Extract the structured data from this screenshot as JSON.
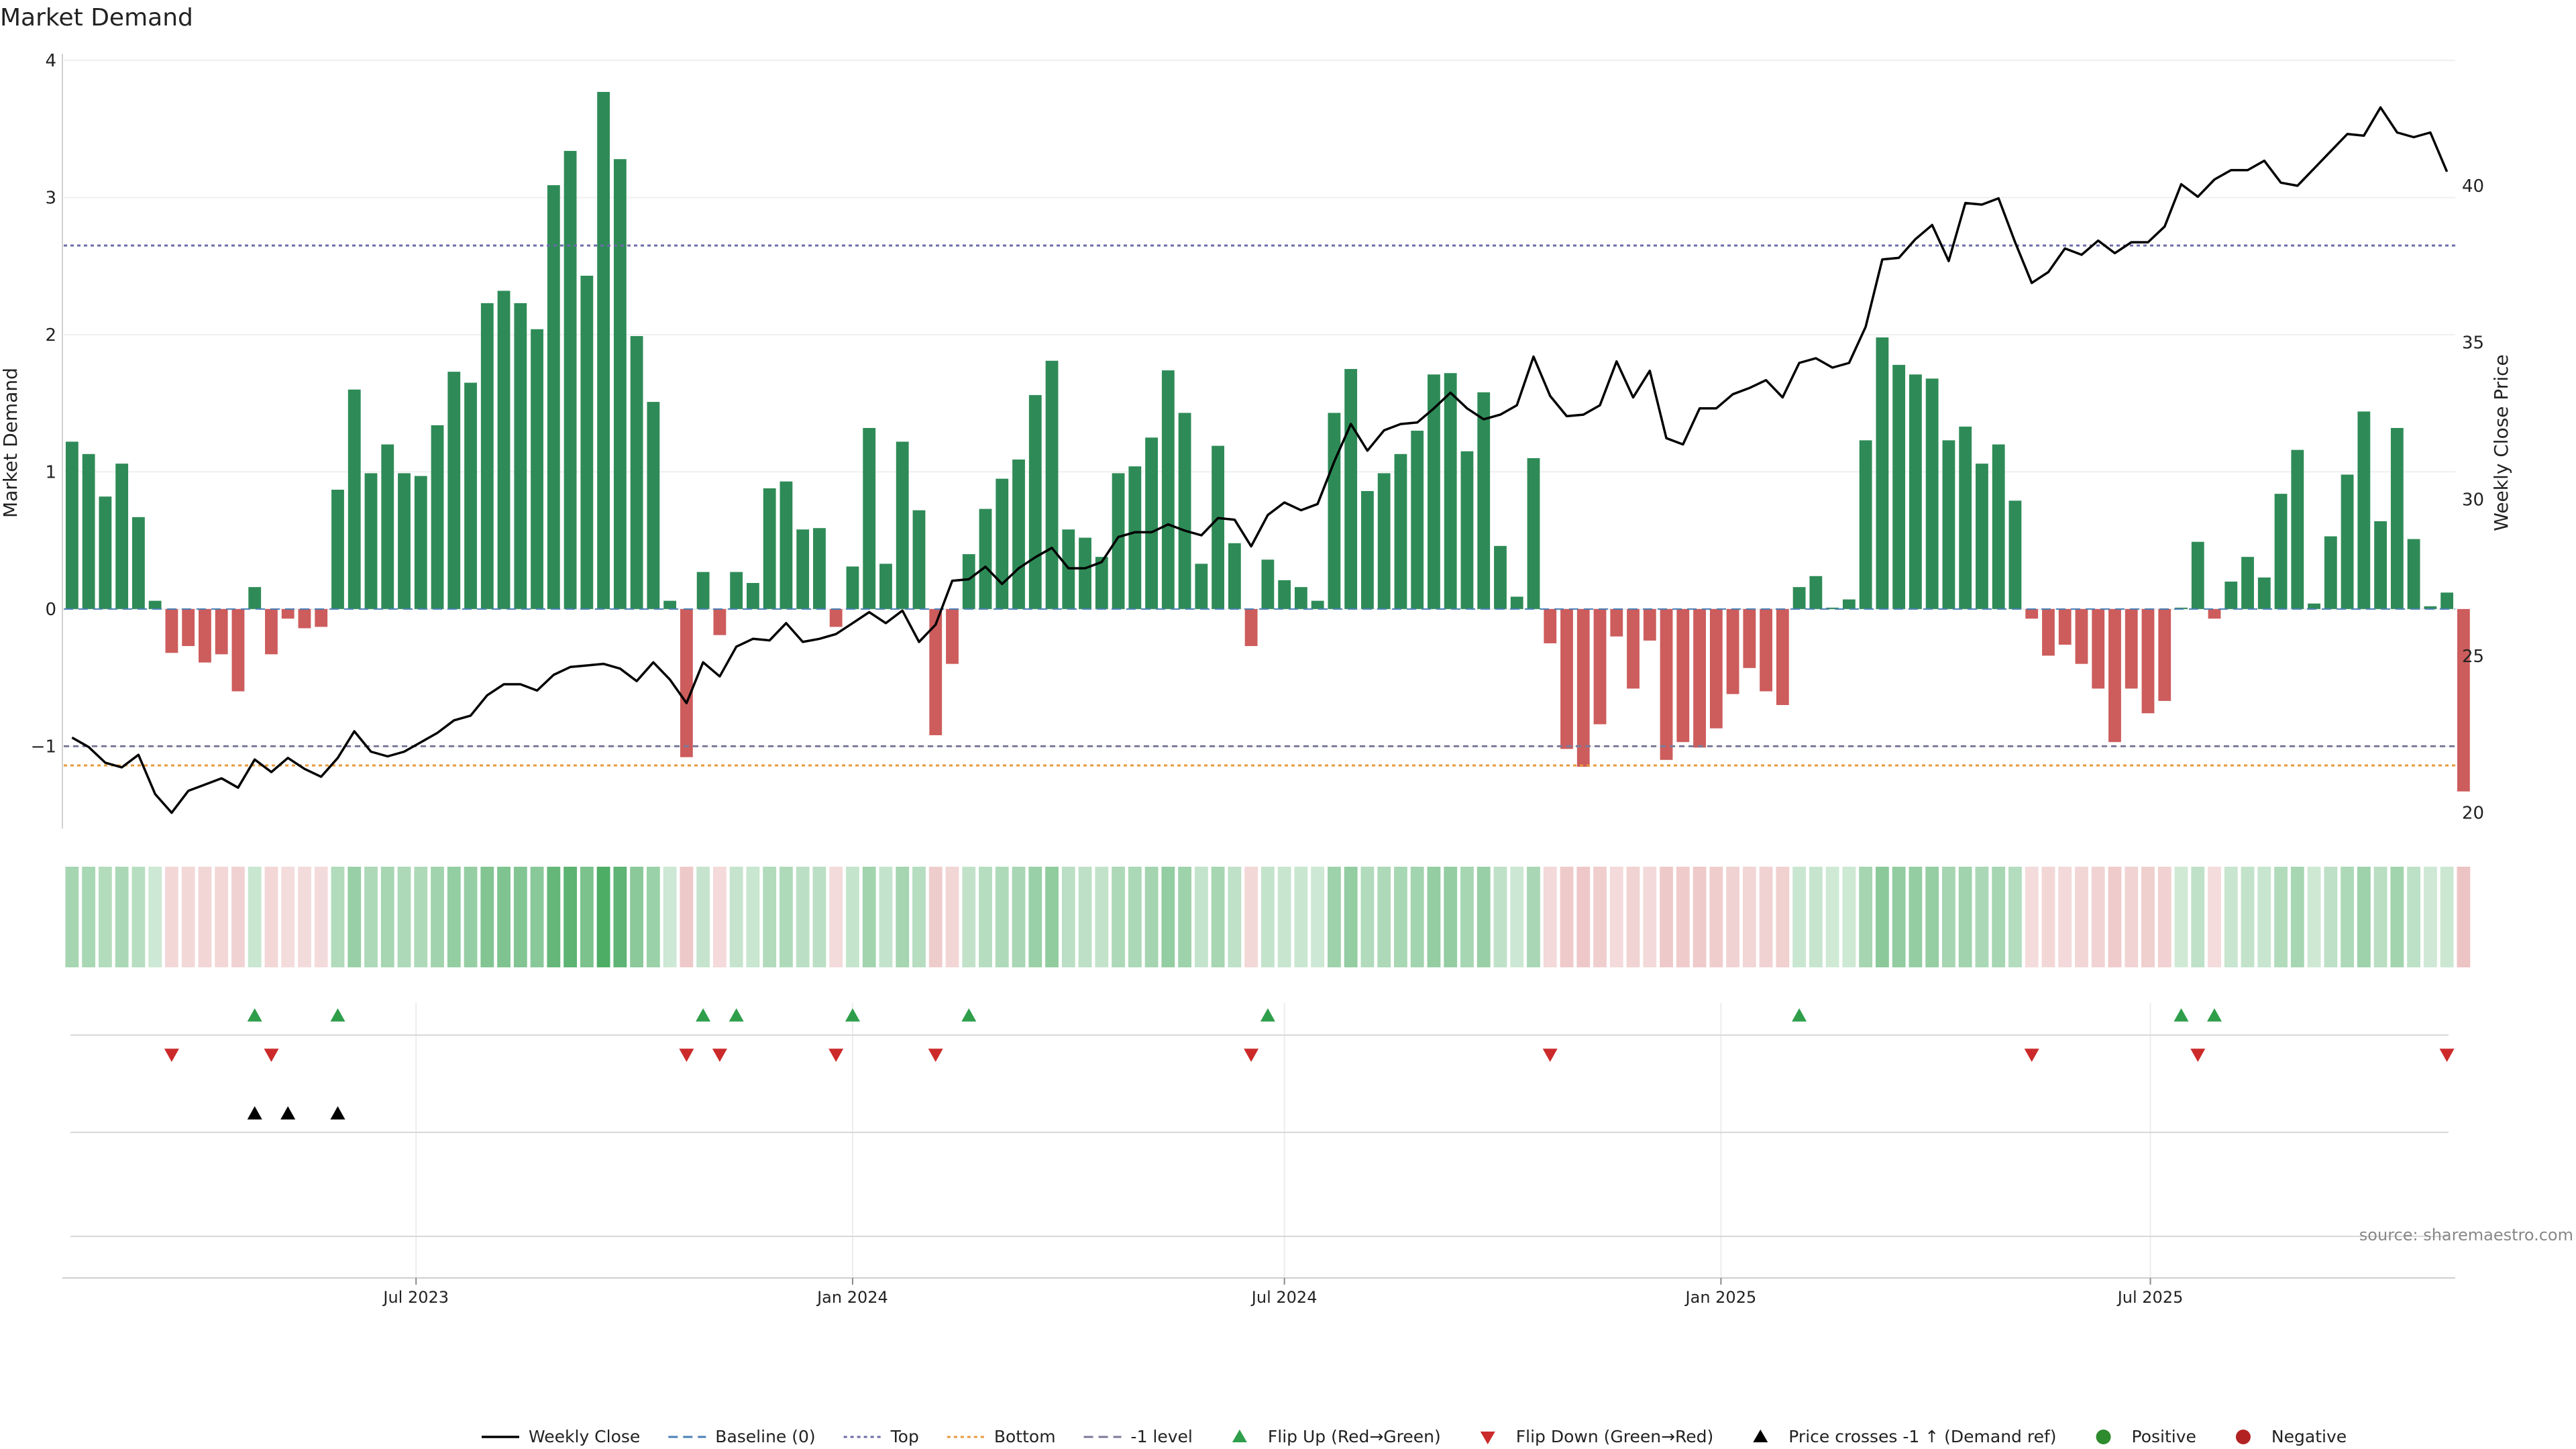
{
  "chart_data": {
    "type": "bar",
    "title": "Market Demand",
    "ylabel": "Market Demand",
    "y2label": "Weekly Close Price",
    "ylim": [
      -1.6,
      4.0
    ],
    "y2lim": [
      19.5,
      44.0
    ],
    "yticks": [
      -1,
      0,
      1,
      2,
      3,
      4
    ],
    "y2ticks": [
      20,
      25,
      30,
      35,
      40
    ],
    "x_start": "2023-02-06",
    "x_end": "2025-11-17",
    "weeks": 144,
    "xtick_labels": [
      {
        "label": "Jul 2023",
        "date": "2023-07-01"
      },
      {
        "label": "Jan 2024",
        "date": "2024-01-01"
      },
      {
        "label": "Jul 2024",
        "date": "2024-07-01"
      },
      {
        "label": "Jan 2025",
        "date": "2025-01-01"
      },
      {
        "label": "Jul 2025",
        "date": "2025-07-01"
      }
    ],
    "reference_lines": {
      "top": 2.65,
      "bottom": -1.14,
      "minus_one": -1.0,
      "baseline": 0
    },
    "demand": [
      1.22,
      1.13,
      0.82,
      1.06,
      0.67,
      0.06,
      -0.32,
      -0.27,
      -0.39,
      -0.33,
      -0.6,
      0.16,
      -0.33,
      -0.07,
      -0.14,
      -0.13,
      0.87,
      1.6,
      0.99,
      1.2,
      0.99,
      0.97,
      1.34,
      1.73,
      1.65,
      2.23,
      2.32,
      2.23,
      2.04,
      3.09,
      3.34,
      2.43,
      3.77,
      3.28,
      1.99,
      1.51,
      0.06,
      -1.08,
      0.27,
      -0.19,
      0.27,
      0.19,
      0.88,
      0.93,
      0.58,
      0.59,
      -0.13,
      0.31,
      1.32,
      0.33,
      1.22,
      0.72,
      -0.92,
      -0.4,
      0.4,
      0.73,
      0.95,
      1.09,
      1.56,
      1.81,
      0.58,
      0.52,
      0.38,
      0.99,
      1.04,
      1.25,
      1.74,
      1.43,
      0.33,
      1.19,
      0.48,
      -0.27,
      0.36,
      0.21,
      0.16,
      0.06,
      1.43,
      1.75,
      0.86,
      0.99,
      1.13,
      1.3,
      1.71,
      1.72,
      1.15,
      1.58,
      0.46,
      0.09,
      1.1,
      -0.25,
      -1.02,
      -1.15,
      -0.84,
      -0.2,
      -0.58,
      -0.23,
      -1.1,
      -0.97,
      -1.01,
      -0.87,
      -0.62,
      -0.43,
      -0.6,
      -0.7,
      0.16,
      0.24,
      0.01,
      0.07,
      1.23,
      1.98,
      1.78,
      1.71,
      1.68,
      1.23,
      1.33,
      1.06,
      1.2,
      0.79,
      -0.07,
      -0.34,
      -0.26,
      -0.4,
      -0.58,
      -0.97,
      -0.58,
      -0.76,
      -0.67,
      0.01,
      0.49,
      -0.07,
      0.2,
      0.38,
      0.23,
      0.84,
      1.16,
      0.04,
      0.53,
      0.98,
      1.44,
      0.64,
      1.32,
      0.51,
      0.02,
      0.12,
      -1.33
    ],
    "price": [
      22.4,
      22.1,
      21.6,
      21.45,
      21.85,
      20.6,
      20.0,
      20.7,
      20.9,
      21.1,
      20.8,
      21.7,
      21.3,
      21.75,
      21.4,
      21.15,
      21.75,
      22.6,
      21.95,
      21.8,
      21.95,
      22.25,
      22.55,
      22.95,
      23.1,
      23.75,
      24.1,
      24.1,
      23.9,
      24.4,
      24.65,
      24.7,
      24.75,
      24.6,
      24.2,
      24.8,
      24.25,
      23.5,
      24.8,
      24.35,
      25.3,
      25.55,
      25.5,
      26.05,
      25.45,
      25.55,
      25.7,
      26.05,
      26.4,
      26.05,
      26.45,
      25.45,
      26.0,
      27.4,
      27.45,
      27.85,
      27.3,
      27.8,
      28.15,
      28.45,
      27.8,
      27.8,
      28.0,
      28.8,
      28.95,
      28.95,
      29.2,
      29.0,
      28.85,
      29.4,
      29.35,
      28.5,
      29.5,
      29.9,
      29.65,
      29.85,
      31.2,
      32.4,
      31.55,
      32.2,
      32.4,
      32.45,
      32.9,
      33.4,
      32.9,
      32.55,
      32.7,
      33.0,
      34.55,
      33.3,
      32.65,
      32.7,
      33.0,
      34.4,
      33.25,
      34.1,
      31.95,
      31.75,
      32.9,
      32.9,
      33.35,
      33.55,
      33.8,
      33.25,
      34.35,
      34.5,
      34.2,
      34.35,
      35.5,
      37.65,
      37.7,
      38.3,
      38.75,
      37.6,
      39.45,
      39.4,
      39.6,
      38.2,
      36.9,
      37.25,
      38.0,
      37.8,
      38.25,
      37.85,
      38.2,
      38.2,
      38.7,
      40.05,
      39.65,
      40.2,
      40.5,
      40.5,
      40.8,
      40.1,
      40.0,
      40.55,
      41.1,
      41.65,
      41.6,
      42.5,
      41.7,
      41.55,
      41.7,
      40.45
    ],
    "flip_up_weeks": [
      11,
      16,
      38,
      40,
      47,
      54,
      72,
      104,
      127,
      129
    ],
    "flip_down_weeks": [
      6,
      12,
      37,
      39,
      46,
      52,
      71,
      89,
      118,
      128,
      143
    ],
    "price_cross_weeks": [
      11,
      13,
      16
    ],
    "legend": [
      {
        "label": "Weekly Close",
        "symbol": "line",
        "color": "#000000"
      },
      {
        "label": "Baseline (0)",
        "symbol": "dash",
        "color": "#4a7fb5"
      },
      {
        "label": "Top",
        "symbol": "dot",
        "color": "#6b6ba8"
      },
      {
        "label": "Bottom",
        "symbol": "dot",
        "color": "#e69a3c"
      },
      {
        "label": "-1 level",
        "symbol": "dash",
        "color": "#7a7a99"
      },
      {
        "label": "Flip Up (Red→Green)",
        "symbol": "tri-up",
        "color": "#2e9e4a"
      },
      {
        "label": "Flip Down (Green→Red)",
        "symbol": "tri-down",
        "color": "#cc2a2a"
      },
      {
        "label": "Price crosses -1 ↑ (Demand ref)",
        "symbol": "tri-up",
        "color": "#000000"
      },
      {
        "label": "Positive",
        "symbol": "circle",
        "color": "#2e8b2e"
      },
      {
        "label": "Negative",
        "symbol": "circle",
        "color": "#b22222"
      }
    ],
    "colors": {
      "positive_bar": "#2e8b57",
      "negative_bar": "#cd5c5c",
      "price_line": "#000000",
      "top_line": "#6b6ba8",
      "bottom_line": "#e69a3c",
      "minus_one_line": "#7a7a99",
      "baseline": "#4a7fb5"
    }
  },
  "source_note": "source: sharemaestro.com"
}
